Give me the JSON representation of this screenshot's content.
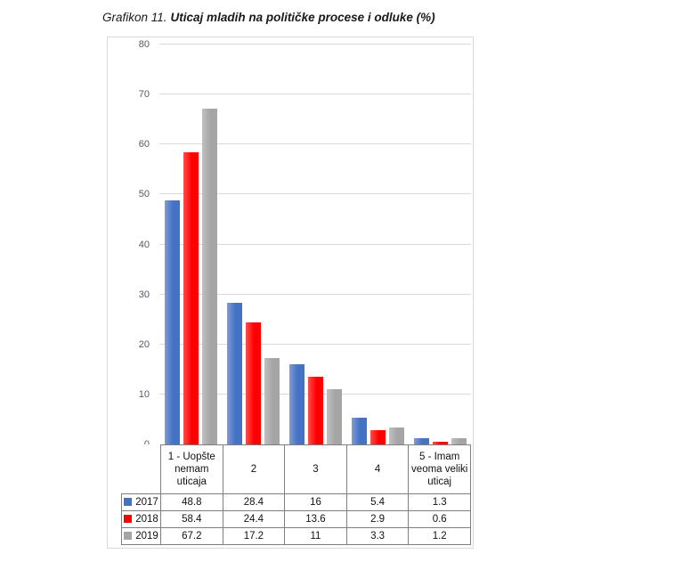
{
  "page": {
    "title_prefix": "Grafikon 11.",
    "title_main": "Uticaj mladih na političke procese i odluke (%)"
  },
  "chart_data": {
    "type": "bar",
    "title": "Uticaj mladih na političke procese i odluke (%)",
    "categories": [
      "1 - Uopšte nemam uticaja",
      "2",
      "3",
      "4",
      "5 - Imam veoma veliki uticaj"
    ],
    "series": [
      {
        "name": "2017",
        "color": "#4472c4",
        "values": [
          48.8,
          28.4,
          16,
          5.4,
          1.3
        ]
      },
      {
        "name": "2018",
        "color": "#ff0000",
        "values": [
          58.4,
          24.4,
          13.6,
          2.9,
          0.6
        ]
      },
      {
        "name": "2019",
        "color": "#a5a5a5",
        "values": [
          67.2,
          17.2,
          11,
          3.3,
          1.2
        ]
      }
    ],
    "xlabel": "",
    "ylabel": "",
    "ylim": [
      0,
      80
    ],
    "ytick": 10,
    "grid": true,
    "legend_position": "table-left",
    "gridline_color": "#d9d9d9",
    "axis_line_color": "#a6a6a6",
    "ylabel_color": "#595959",
    "table_border_color": "#7f7f7f"
  }
}
